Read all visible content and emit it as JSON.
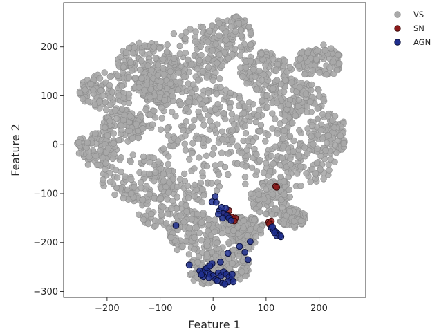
{
  "chart_data": {
    "type": "scatter",
    "title": "",
    "xlabel": "Feature 1",
    "ylabel": "Feature 2",
    "xlim": [
      -282,
      288
    ],
    "ylim": [
      -312,
      290
    ],
    "xticks": [
      -200,
      -100,
      0,
      100,
      200
    ],
    "yticks": [
      200,
      100,
      0,
      -100,
      -200,
      -300
    ],
    "xtick_labels": [
      "−200",
      "−100",
      "0",
      "100",
      "200"
    ],
    "ytick_labels": [
      "200",
      "100",
      "0",
      "−100",
      "−200",
      "−300"
    ],
    "grid": false,
    "legend": {
      "position": "outside-right-top"
    },
    "series": [
      {
        "name": "VS",
        "color": "#a9a9a9",
        "edge_color": "#8c8c8c",
        "description": "dense cloud of points roughly covering x in [-260, 260], y in [-290, 265]",
        "points_note": "approximate density sample"
      },
      {
        "name": "SN",
        "color": "#8b1a1a",
        "edge_color": "#3a0808",
        "points": [
          [
            118,
            -85
          ],
          [
            120,
            -87
          ],
          [
            105,
            -158
          ],
          [
            108,
            -160
          ],
          [
            110,
            -156
          ],
          [
            106,
            -162
          ],
          [
            22,
            -140
          ],
          [
            30,
            -135
          ],
          [
            35,
            -148
          ],
          [
            38,
            -152
          ],
          [
            42,
            -150
          ],
          [
            28,
            -145
          ],
          [
            40,
            -156
          ]
        ]
      },
      {
        "name": "AGN",
        "color": "#1f2f8f",
        "edge_color": "#0a0f3a",
        "points": [
          [
            4,
            -106
          ],
          [
            -2,
            -117
          ],
          [
            6,
            -118
          ],
          [
            12,
            -135
          ],
          [
            16,
            -128
          ],
          [
            20,
            -140
          ],
          [
            24,
            -130
          ],
          [
            26,
            -145
          ],
          [
            30,
            -150
          ],
          [
            34,
            -155
          ],
          [
            18,
            -150
          ],
          [
            10,
            -142
          ],
          [
            -70,
            -165
          ],
          [
            110,
            -170
          ],
          [
            114,
            -175
          ],
          [
            118,
            -178
          ],
          [
            122,
            -182
          ],
          [
            126,
            -185
          ],
          [
            120,
            -186
          ],
          [
            128,
            -188
          ],
          [
            116,
            -180
          ],
          [
            112,
            -168
          ],
          [
            50,
            -208
          ],
          [
            60,
            -220
          ],
          [
            70,
            -198
          ],
          [
            28,
            -222
          ],
          [
            66,
            -235
          ],
          [
            -45,
            -246
          ],
          [
            -25,
            -258
          ],
          [
            -20,
            -262
          ],
          [
            -15,
            -255
          ],
          [
            -10,
            -260
          ],
          [
            -5,
            -265
          ],
          [
            0,
            -268
          ],
          [
            -18,
            -270
          ],
          [
            -8,
            -272
          ],
          [
            -22,
            -266
          ],
          [
            5,
            -275
          ],
          [
            10,
            -262
          ],
          [
            15,
            -268
          ],
          [
            20,
            -260
          ],
          [
            25,
            -265
          ],
          [
            30,
            -270
          ],
          [
            35,
            -275
          ],
          [
            28,
            -280
          ],
          [
            18,
            -283
          ],
          [
            22,
            -285
          ],
          [
            8,
            -278
          ],
          [
            -12,
            -252
          ],
          [
            -2,
            -243
          ],
          [
            14,
            -240
          ],
          [
            -6,
            -248
          ],
          [
            36,
            -265
          ],
          [
            38,
            -280
          ]
        ]
      }
    ]
  }
}
